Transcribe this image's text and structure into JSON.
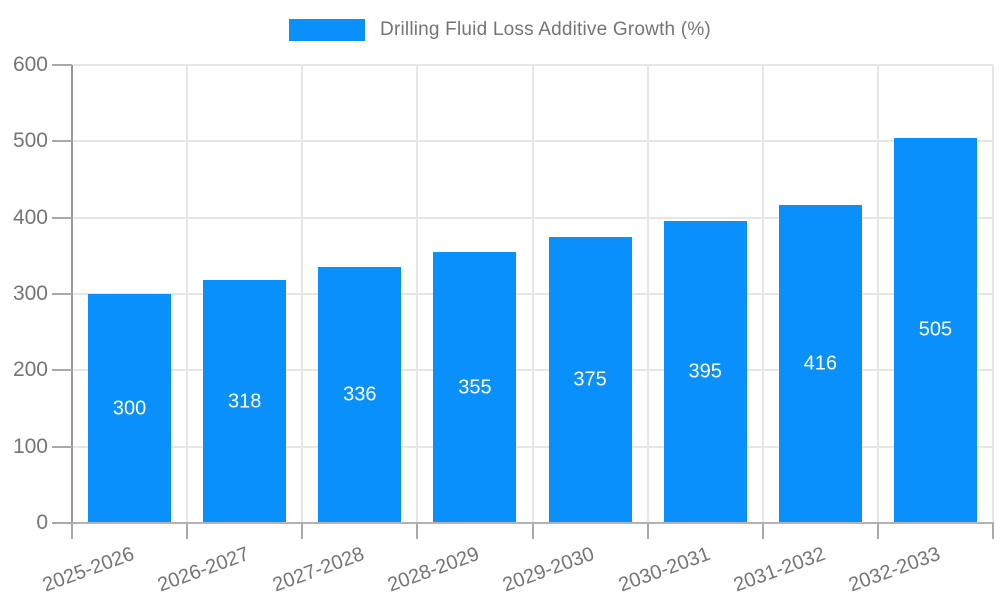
{
  "chart_data": {
    "type": "bar",
    "title": "Drilling Fluid Loss Additive Growth (%)",
    "categories": [
      "2025-2026",
      "2026-2027",
      "2027-2028",
      "2028-2029",
      "2029-2030",
      "2030-2031",
      "2031-2032",
      "2032-2033"
    ],
    "values": [
      300,
      318,
      336,
      355,
      375,
      395,
      416,
      505
    ],
    "xlabel": "",
    "ylabel": "",
    "ylim": [
      0,
      600
    ],
    "ytick_step": 100,
    "yticks": [
      0,
      100,
      200,
      300,
      400,
      500,
      600
    ],
    "grid": true,
    "legend_position": "top",
    "value_labels_inside_bars": true,
    "x_label_rotation_deg": -20
  },
  "colors": {
    "bar": "#0a90fa",
    "grid": "#e6e6e6",
    "x_axis": "#b3b3b3",
    "y_axis": "#999999",
    "tick": "#aaaaaa",
    "tick_text": "#757575",
    "value_label": "#ffffff"
  }
}
